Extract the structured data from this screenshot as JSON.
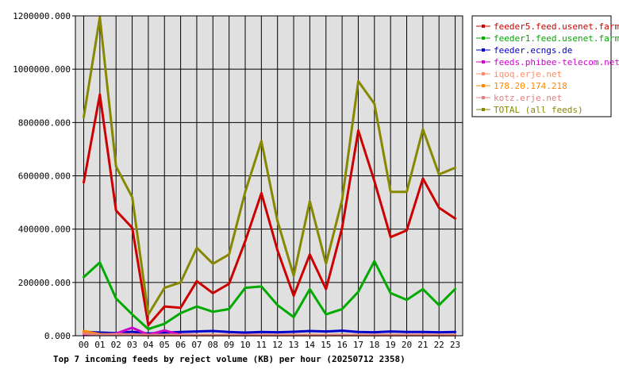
{
  "chart_data": {
    "type": "line",
    "title": "Top 7 incoming feeds by reject volume (KB) per hour (20250712 2358)",
    "xlabel": "",
    "ylabel": "",
    "ylim": [
      0,
      1200000
    ],
    "y_ticks": [
      "0.000",
      "200000.000",
      "400000.000",
      "600000.000",
      "800000.000",
      "1000000.000",
      "1200000.000"
    ],
    "y_tick_values": [
      0,
      200000,
      400000,
      600000,
      800000,
      1000000,
      1200000
    ],
    "grid": true,
    "legend_position": "top-right",
    "categories": [
      "00",
      "01",
      "02",
      "03",
      "04",
      "05",
      "06",
      "07",
      "08",
      "09",
      "10",
      "11",
      "12",
      "13",
      "14",
      "15",
      "16",
      "17",
      "18",
      "19",
      "20",
      "21",
      "22",
      "23"
    ],
    "series": [
      {
        "name": "feeder5.feed.usenet.farm",
        "color": "#cc0000",
        "values": [
          575000,
          905000,
          470000,
          405000,
          40000,
          110000,
          105000,
          205000,
          160000,
          195000,
          355000,
          535000,
          320000,
          150000,
          305000,
          175000,
          405000,
          770000,
          580000,
          370000,
          395000,
          590000,
          480000,
          440000
        ]
      },
      {
        "name": "feeder1.feed.usenet.farm",
        "color": "#00aa00",
        "values": [
          220000,
          275000,
          140000,
          80000,
          25000,
          45000,
          85000,
          110000,
          90000,
          100000,
          180000,
          185000,
          115000,
          70000,
          175000,
          80000,
          100000,
          165000,
          280000,
          160000,
          135000,
          175000,
          115000,
          175000
        ]
      },
      {
        "name": "feeder.ecngs.de",
        "color": "#0000cc",
        "values": [
          15000,
          12000,
          10000,
          15000,
          8000,
          12000,
          14000,
          16000,
          18000,
          14000,
          12000,
          14000,
          13000,
          15000,
          18000,
          16000,
          19000,
          14000,
          13000,
          16000,
          14000,
          14000,
          13000,
          14000
        ]
      },
      {
        "name": "feeds.phibee-telecom.net",
        "color": "#cc00cc",
        "values": [
          5000,
          3000,
          8000,
          30000,
          4000,
          20000,
          4000,
          3000,
          3000,
          3000,
          3000,
          3000,
          3000,
          3000,
          3000,
          3000,
          3000,
          3000,
          3000,
          3000,
          3000,
          3000,
          3000,
          3000
        ]
      },
      {
        "name": "iqoq.erje.net",
        "color": "#ff8c69",
        "values": [
          12000,
          5000,
          6000,
          5000,
          3000,
          4000,
          3000,
          3000,
          3000,
          3000,
          3000,
          3000,
          3000,
          3000,
          3000,
          3000,
          3000,
          3000,
          3000,
          3000,
          3000,
          3000,
          3000,
          3000
        ]
      },
      {
        "name": "178.20.174.218",
        "color": "#ff8800",
        "values": [
          18000,
          6000,
          4000,
          3000,
          2000,
          2000,
          2000,
          2000,
          2000,
          2000,
          2000,
          2000,
          2000,
          2000,
          2000,
          2000,
          2000,
          2000,
          2000,
          2000,
          2000,
          2000,
          2000,
          2000
        ]
      },
      {
        "name": "kotz.erje.net",
        "color": "#e08080",
        "values": [
          8000,
          4000,
          5000,
          4000,
          2000,
          3000,
          2000,
          2000,
          2000,
          2000,
          2000,
          2000,
          2000,
          2000,
          2000,
          2000,
          2000,
          2000,
          2000,
          2000,
          2000,
          2000,
          2000,
          2000
        ]
      },
      {
        "name": "TOTAL (all feeds)",
        "color": "#888800",
        "values": [
          820000,
          1195000,
          635000,
          520000,
          80000,
          180000,
          200000,
          330000,
          270000,
          305000,
          540000,
          730000,
          430000,
          225000,
          505000,
          270000,
          510000,
          955000,
          870000,
          540000,
          540000,
          775000,
          605000,
          630000
        ]
      }
    ]
  }
}
